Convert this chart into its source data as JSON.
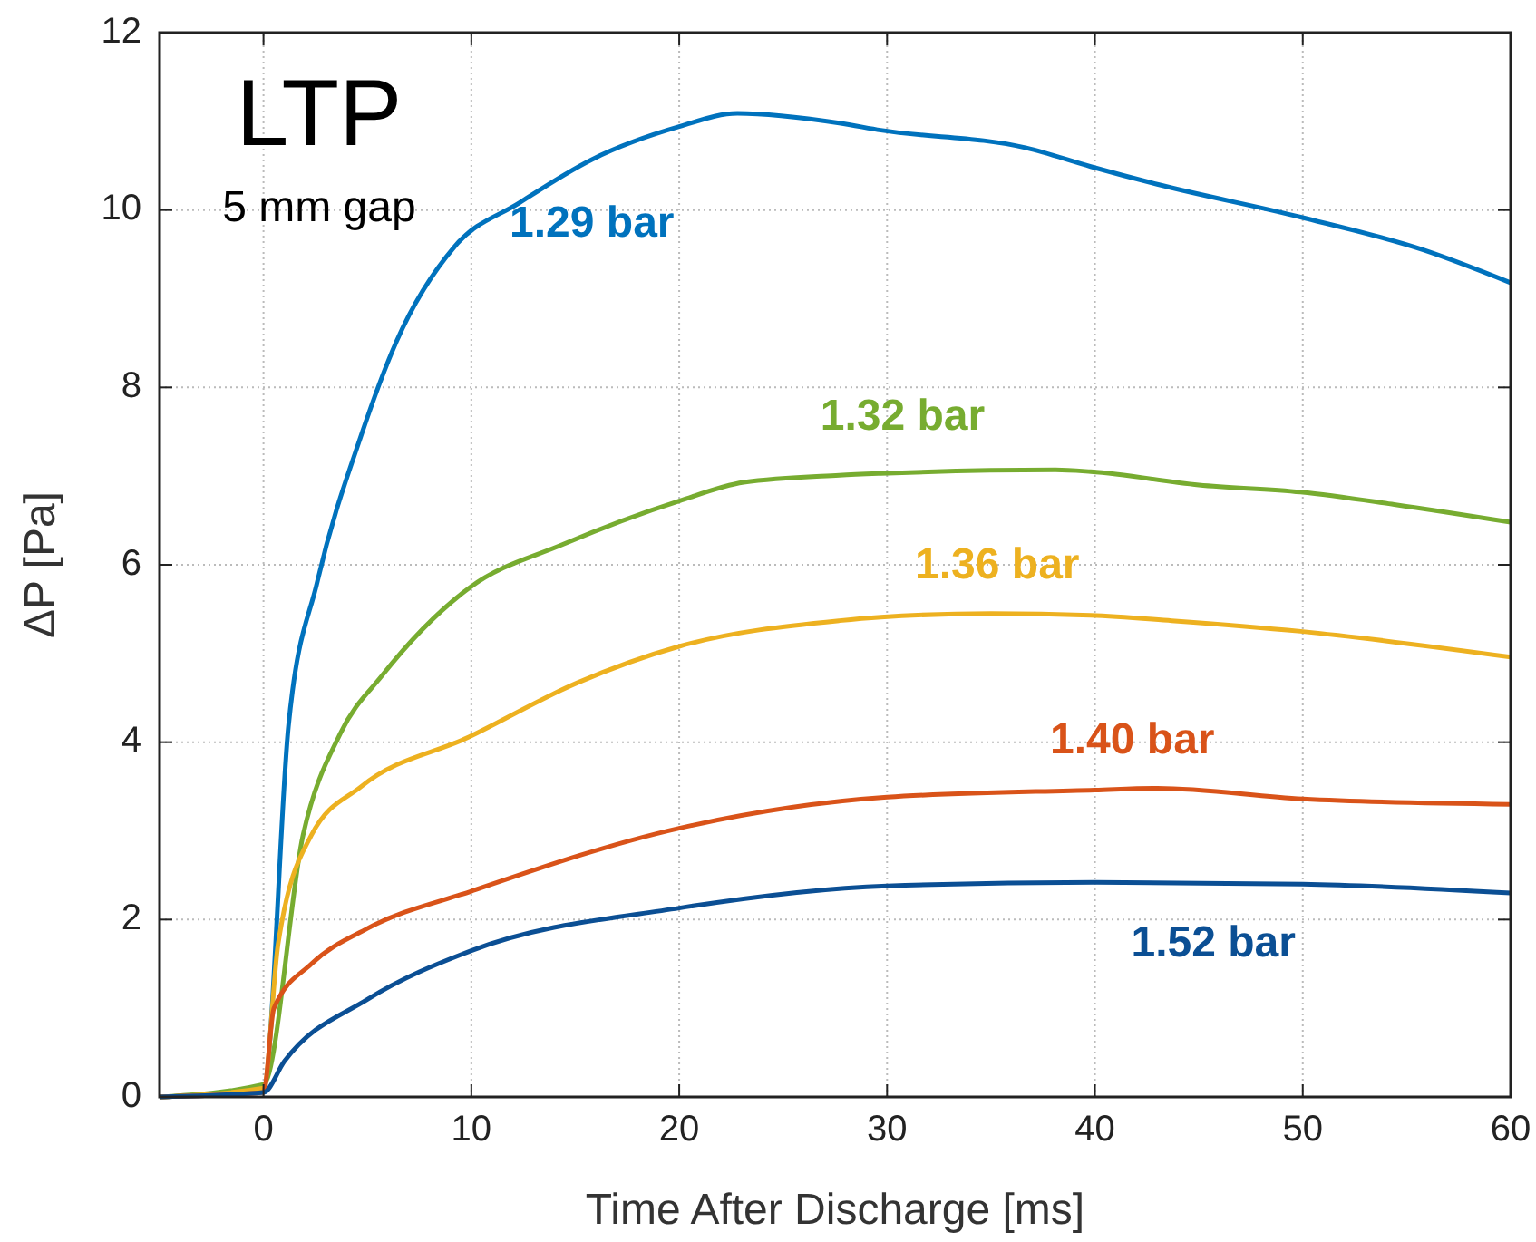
{
  "chart_data": {
    "type": "line",
    "xlabel": "Time After Discharge [ms]",
    "ylabel": "ΔP [Pa]",
    "xlim": [
      -5,
      60
    ],
    "ylim": [
      0,
      12
    ],
    "xticks": [
      0,
      10,
      20,
      30,
      40,
      50,
      60
    ],
    "yticks": [
      0,
      2,
      4,
      6,
      8,
      10,
      12
    ],
    "grid": true,
    "line_style": "solid",
    "marker": "none",
    "annotations": [
      "LTP",
      "5 mm gap"
    ],
    "series": [
      {
        "name": "1.29 bar",
        "color": "#0072bd",
        "x": [
          -5,
          0,
          1.2,
          2.6,
          4.7,
          6.4,
          9.2,
          12.3,
          15.8,
          20,
          22.8,
          27.7,
          29.7,
          36.7,
          39.8,
          43,
          49.9,
          55.8,
          60
        ],
        "values": [
          0,
          0.1,
          4.18,
          5.82,
          7.46,
          8.52,
          9.59,
          10.08,
          10.57,
          10.94,
          11.09,
          10.98,
          10.9,
          10.7,
          10.49,
          10.29,
          9.92,
          9.55,
          9.18
        ]
      },
      {
        "name": "1.32 bar",
        "color": "#77ac30",
        "x": [
          -5,
          0,
          1.9,
          3.7,
          5.7,
          9.9,
          14.4,
          20,
          23.1,
          27.7,
          29.7,
          38.1,
          39.8,
          45,
          49.9,
          54.4,
          60
        ],
        "values": [
          0,
          0.14,
          2.95,
          4.1,
          4.75,
          5.74,
          6.23,
          6.72,
          6.93,
          7.01,
          7.03,
          7.07,
          7.05,
          6.9,
          6.82,
          6.68,
          6.48
        ]
      },
      {
        "name": "1.36 bar",
        "color": "#edb120",
        "x": [
          -5,
          0,
          0.7,
          2.3,
          4.7,
          9.9,
          15.1,
          20,
          27.7,
          29.7,
          35,
          39.8,
          43.7,
          49.9,
          60
        ],
        "values": [
          0,
          0.1,
          1.72,
          2.95,
          3.5,
          4.06,
          4.67,
          5.08,
          5.37,
          5.41,
          5.45,
          5.43,
          5.37,
          5.25,
          4.96
        ]
      },
      {
        "name": "1.40 bar",
        "color": "#d95319",
        "x": [
          -5,
          0,
          0.5,
          2.3,
          5,
          10,
          20,
          30,
          40,
          43,
          50,
          60
        ],
        "values": [
          0,
          0.05,
          1.0,
          1.5,
          1.9,
          2.32,
          3.03,
          3.38,
          3.46,
          3.48,
          3.36,
          3.3
        ]
      },
      {
        "name": "1.52 bar",
        "color": "#0b4f94",
        "x": [
          -5,
          0,
          1,
          5,
          10,
          20,
          30,
          40,
          50,
          60
        ],
        "values": [
          0,
          0.05,
          0.4,
          1.1,
          1.65,
          2.13,
          2.38,
          2.42,
          2.4,
          2.3
        ]
      }
    ]
  }
}
